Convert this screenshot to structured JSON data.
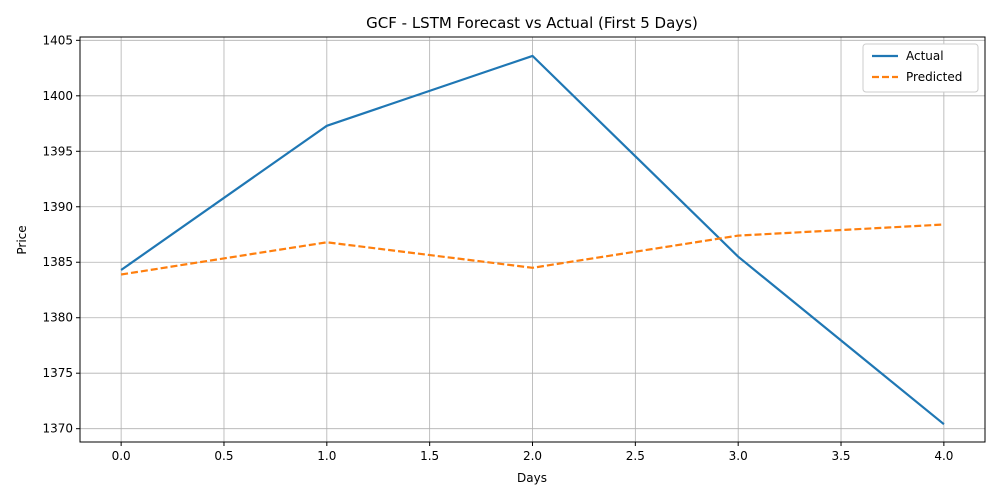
{
  "chart_data": {
    "type": "line",
    "title": "GCF - LSTM Forecast vs Actual (First 5 Days)",
    "xlabel": "Days",
    "ylabel": "Price",
    "xlim": [
      -0.2,
      4.2
    ],
    "ylim": [
      1368.8,
      1405.3
    ],
    "xticks": [
      "0.0",
      "0.5",
      "1.0",
      "1.5",
      "2.0",
      "2.5",
      "3.0",
      "3.5",
      "4.0"
    ],
    "yticks": [
      "1370",
      "1375",
      "1380",
      "1385",
      "1390",
      "1395",
      "1400",
      "1405"
    ],
    "grid": true,
    "legend_position": "top-right",
    "x": [
      0,
      1,
      2,
      3,
      4
    ],
    "series": [
      {
        "name": "Actual",
        "values": [
          1384.3,
          1397.3,
          1403.6,
          1385.5,
          1370.4
        ],
        "color": "#1f77b4",
        "style": "solid"
      },
      {
        "name": "Predicted",
        "values": [
          1383.9,
          1386.8,
          1384.5,
          1387.4,
          1388.4
        ],
        "color": "#ff7f0e",
        "style": "dashed"
      }
    ]
  }
}
